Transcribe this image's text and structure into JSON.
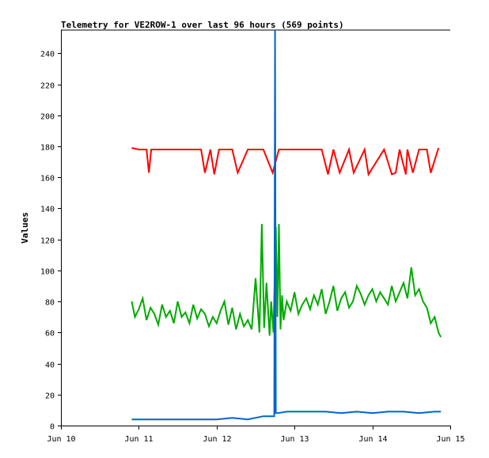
{
  "chart_data": {
    "type": "line",
    "title": "Telemetry for VE2ROW-1 over last 96 hours (569 points)",
    "xlabel": "",
    "ylabel": "Values",
    "xlim": [
      0,
      5
    ],
    "ylim": [
      0,
      255
    ],
    "x_ticks": [
      {
        "label": "Jun 10",
        "value": 0
      },
      {
        "label": "Jun 11",
        "value": 1
      },
      {
        "label": "Jun 12",
        "value": 2
      },
      {
        "label": "Jun 13",
        "value": 3
      },
      {
        "label": "Jun 14",
        "value": 4
      },
      {
        "label": "Jun 15",
        "value": 5
      }
    ],
    "y_ticks": [
      0,
      20,
      40,
      60,
      80,
      100,
      120,
      140,
      160,
      180,
      200,
      220,
      240
    ],
    "grid": false,
    "series": [
      {
        "color": "#ff0000",
        "x": [
          0.91,
          1.0,
          1.1,
          1.13,
          1.16,
          1.2,
          1.4,
          1.6,
          1.8,
          1.85,
          1.92,
          1.97,
          2.03,
          2.2,
          2.27,
          2.4,
          2.6,
          2.72,
          2.8,
          3.0,
          3.2,
          3.35,
          3.43,
          3.5,
          3.58,
          3.7,
          3.76,
          3.9,
          3.95,
          4.15,
          4.25,
          4.3,
          4.35,
          4.43,
          4.45,
          4.52,
          4.6,
          4.7,
          4.75,
          4.85
        ],
        "y": [
          179,
          178,
          178,
          163,
          178,
          178,
          178,
          178,
          178,
          163,
          178,
          162,
          178,
          178,
          163,
          178,
          178,
          163,
          178,
          178,
          178,
          178,
          162,
          178,
          163,
          178,
          163,
          178,
          162,
          178,
          162,
          163,
          178,
          162,
          178,
          163,
          178,
          178,
          163,
          179
        ]
      },
      {
        "color": "#00aa00",
        "x": [
          0.91,
          0.95,
          1.0,
          1.05,
          1.1,
          1.15,
          1.2,
          1.25,
          1.3,
          1.35,
          1.4,
          1.45,
          1.5,
          1.55,
          1.6,
          1.65,
          1.7,
          1.75,
          1.8,
          1.85,
          1.9,
          1.95,
          2.0,
          2.05,
          2.1,
          2.15,
          2.2,
          2.25,
          2.3,
          2.35,
          2.4,
          2.45,
          2.5,
          2.55,
          2.58,
          2.61,
          2.64,
          2.68,
          2.7,
          2.73,
          2.76,
          2.78,
          2.8,
          2.82,
          2.84,
          2.86,
          2.9,
          2.95,
          3.0,
          3.05,
          3.1,
          3.15,
          3.2,
          3.25,
          3.3,
          3.35,
          3.4,
          3.45,
          3.5,
          3.55,
          3.6,
          3.65,
          3.7,
          3.75,
          3.8,
          3.85,
          3.9,
          3.95,
          4.0,
          4.05,
          4.1,
          4.15,
          4.2,
          4.25,
          4.3,
          4.35,
          4.4,
          4.45,
          4.5,
          4.55,
          4.6,
          4.65,
          4.7,
          4.75,
          4.8,
          4.85,
          4.88
        ],
        "y": [
          80,
          70,
          75,
          82,
          68,
          76,
          72,
          65,
          78,
          70,
          74,
          66,
          80,
          70,
          73,
          66,
          78,
          69,
          75,
          72,
          64,
          70,
          66,
          74,
          80,
          65,
          76,
          62,
          72,
          64,
          68,
          62,
          95,
          60,
          130,
          63,
          92,
          58,
          80,
          60,
          128,
          70,
          130,
          62,
          84,
          68,
          80,
          74,
          86,
          72,
          78,
          82,
          75,
          84,
          78,
          88,
          72,
          80,
          90,
          74,
          82,
          86,
          76,
          80,
          90,
          85,
          78,
          84,
          88,
          80,
          86,
          82,
          78,
          90,
          80,
          86,
          92,
          82,
          102,
          84,
          88,
          80,
          76,
          66,
          70,
          60,
          57
        ]
      },
      {
        "color": "#0066cc",
        "x": [
          0.91,
          1.0,
          1.2,
          1.4,
          1.6,
          1.8,
          2.0,
          2.2,
          2.4,
          2.5,
          2.6,
          2.7,
          2.74,
          2.75,
          2.76,
          2.78,
          2.9,
          3.0,
          3.2,
          3.4,
          3.6,
          3.8,
          4.0,
          4.2,
          4.4,
          4.6,
          4.8,
          4.88
        ],
        "y": [
          4,
          4,
          4,
          4,
          4,
          4,
          4,
          5,
          4,
          5,
          6,
          6,
          6,
          255,
          8,
          8,
          9,
          9,
          9,
          9,
          8,
          9,
          8,
          9,
          9,
          8,
          9,
          9
        ]
      }
    ]
  }
}
